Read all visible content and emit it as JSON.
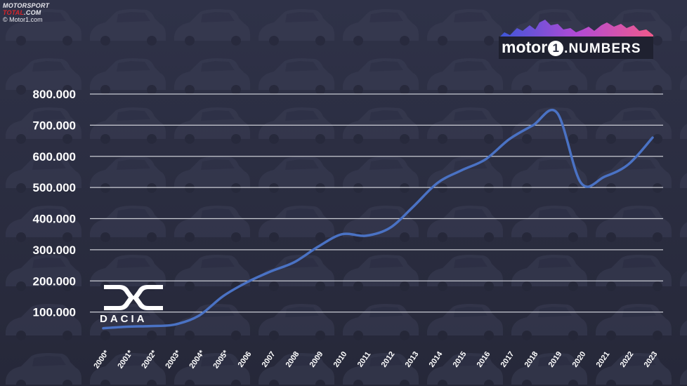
{
  "watermark": {
    "brand_part1": "MOTORSPORT",
    "brand_part2": "TOTAL",
    "brand_part3": ".COM",
    "credit": "© Motor1.com"
  },
  "brand": {
    "motor_text": "motor",
    "one_text": "1",
    "numbers_text": ".NUMBERS",
    "dacia_wordmark": "DACIA"
  },
  "colors": {
    "background": "#2b2e42",
    "line": "#4a72c4",
    "grid": "#c9cbd3",
    "text": "#ffffff"
  },
  "chart_data": {
    "type": "line",
    "title": "",
    "xlabel": "",
    "ylabel": "",
    "ylim": [
      0,
      800000
    ],
    "grid": true,
    "categories": [
      "2000*",
      "2001*",
      "2002*",
      "2003*",
      "2004*",
      "2005*",
      "2006",
      "2007",
      "2008",
      "2009",
      "2010",
      "2011",
      "2012",
      "2013",
      "2014",
      "2015",
      "2016",
      "2017",
      "2018",
      "2019",
      "2020",
      "2021",
      "2022",
      "2023"
    ],
    "y_tick_labels": [
      "100.000",
      "200.000",
      "300.000",
      "400.000",
      "500.000",
      "600.000",
      "700.000",
      "800.000"
    ],
    "y_tick_values": [
      100000,
      200000,
      300000,
      400000,
      500000,
      600000,
      700000,
      800000
    ],
    "series": [
      {
        "values": [
          48000,
          53000,
          55000,
          60000,
          88000,
          150000,
          195000,
          230000,
          260000,
          310000,
          350000,
          345000,
          370000,
          440000,
          515000,
          555000,
          590000,
          655000,
          700000,
          740000,
          515000,
          535000,
          575000,
          660000
        ]
      }
    ]
  }
}
